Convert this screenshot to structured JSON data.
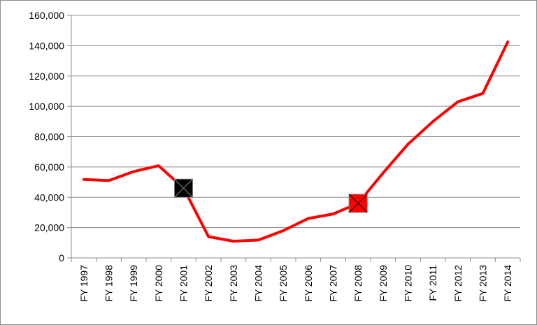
{
  "chart_data": {
    "type": "line",
    "title": "",
    "xlabel": "",
    "ylabel": "",
    "categories": [
      "FY 1997",
      "FY 1998",
      "FY 1999",
      "FY 2000",
      "FY 2001",
      "FY 2002",
      "FY 2003",
      "FY 2004",
      "FY 2005",
      "FY 2006",
      "FY 2007",
      "FY 2008",
      "FY 2009",
      "FY 2010",
      "FY 2011",
      "FY 2012",
      "FY 2013",
      "FY 2014"
    ],
    "series": [
      {
        "color": "#ff0000",
        "values": [
          51800,
          51000,
          57000,
          60800,
          46000,
          14000,
          11000,
          11800,
          18000,
          26000,
          29000,
          36000,
          56000,
          75000,
          90000,
          103000,
          108500,
          142500
        ]
      }
    ],
    "markers": [
      {
        "category": "FY 2001",
        "value": 46000,
        "fill": "#000000",
        "shape": "square-x"
      },
      {
        "category": "FY 2008",
        "value": 36000,
        "fill": "#ff0000",
        "shape": "square-x"
      }
    ],
    "ylim": [
      0,
      160000
    ],
    "yticks": [
      0,
      20000,
      40000,
      60000,
      80000,
      100000,
      120000,
      140000,
      160000
    ],
    "ytick_labels": [
      "0",
      "20,000",
      "40,000",
      "60,000",
      "80,000",
      "100,000",
      "120,000",
      "140,000",
      "160,000"
    ],
    "grid": true,
    "legend": "none",
    "gridline_color": "#8c8c8c"
  }
}
